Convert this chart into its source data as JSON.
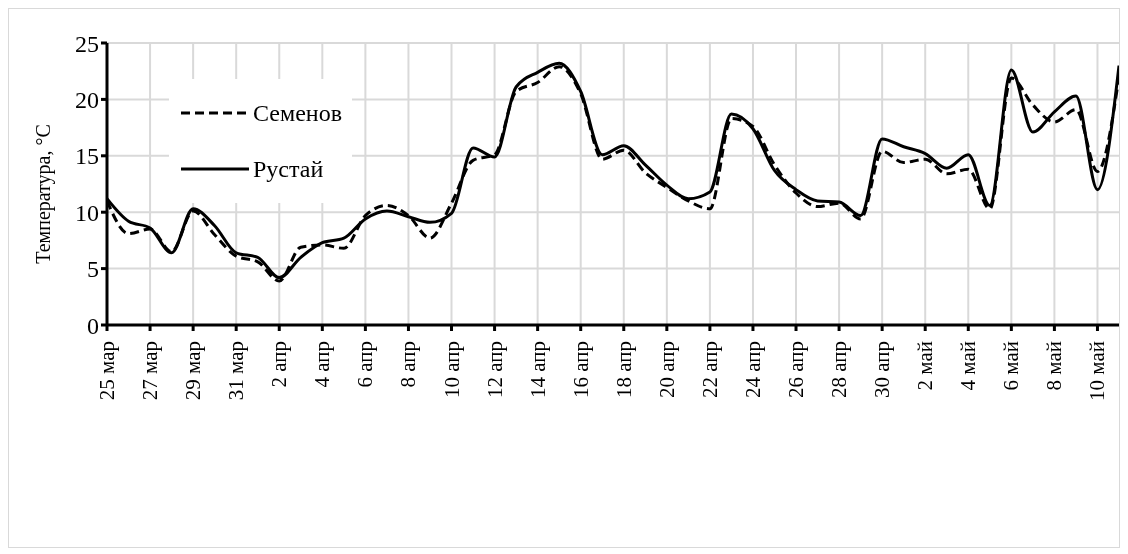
{
  "chart_data": {
    "type": "line",
    "ylabel": "Температура, °С",
    "x": [
      "--03-25",
      "--03-26",
      "--03-27",
      "--03-28",
      "--03-29",
      "--03-30",
      "--03-31",
      "--04-01",
      "--04-02",
      "--04-03",
      "--04-04",
      "--04-05",
      "--04-06",
      "--04-07",
      "--04-08",
      "--04-09",
      "--04-10",
      "--04-11",
      "--04-12",
      "--04-13",
      "--04-14",
      "--04-15",
      "--04-16",
      "--04-17",
      "--04-18",
      "--04-19",
      "--04-20",
      "--04-21",
      "--04-22",
      "--04-23",
      "--04-24",
      "--04-25",
      "--04-26",
      "--04-27",
      "--04-28",
      "--04-29",
      "--04-30",
      "--05-01",
      "--05-02",
      "--05-03",
      "--05-04",
      "--05-05",
      "--05-06",
      "--05-07",
      "--05-08",
      "--05-09",
      "--05-10",
      "--05-11"
    ],
    "series": [
      {
        "name": "Семенов",
        "color": "#000000",
        "line_style": "dashed",
        "values": [
          11.0,
          8.1,
          8.5,
          6.5,
          10.1,
          8.0,
          6.1,
          5.6,
          3.9,
          6.9,
          7.1,
          6.8,
          9.7,
          10.6,
          9.7,
          7.7,
          10.8,
          14.6,
          15.1,
          20.7,
          21.5,
          22.9,
          20.5,
          14.7,
          15.5,
          13.5,
          12.2,
          11.0,
          10.3,
          18.3,
          17.6,
          14.2,
          11.7,
          10.5,
          10.8,
          9.4,
          15.4,
          14.4,
          14.7,
          13.4,
          13.8,
          10.3,
          21.9,
          19.5,
          18.0,
          19.1,
          13.6,
          22.0
        ]
      },
      {
        "name": "Рустай",
        "color": "#000000",
        "line_style": "solid",
        "values": [
          11.2,
          9.2,
          8.6,
          6.4,
          10.3,
          8.8,
          6.4,
          6.0,
          4.2,
          6.0,
          7.3,
          7.7,
          9.4,
          10.1,
          9.6,
          9.1,
          9.9,
          15.7,
          14.9,
          21.1,
          22.4,
          23.2,
          20.7,
          15.1,
          15.9,
          14.2,
          12.4,
          11.2,
          11.8,
          18.7,
          17.4,
          13.7,
          12.0,
          11.0,
          10.9,
          9.7,
          16.5,
          15.8,
          15.2,
          13.9,
          15.1,
          10.6,
          22.6,
          17.1,
          18.9,
          20.3,
          12.0,
          23.0
        ]
      }
    ],
    "xlim": [
      "--03-25",
      "--05-11"
    ],
    "xticks": [
      {
        "value": "--03-25",
        "label": "25 мар"
      },
      {
        "value": "--03-27",
        "label": "27 мар"
      },
      {
        "value": "--03-29",
        "label": "29 мар"
      },
      {
        "value": "--03-31",
        "label": "31 мар"
      },
      {
        "value": "--04-02",
        "label": "2 апр"
      },
      {
        "value": "--04-04",
        "label": "4 апр"
      },
      {
        "value": "--04-06",
        "label": "6 апр"
      },
      {
        "value": "--04-08",
        "label": "8 апр"
      },
      {
        "value": "--04-10",
        "label": "10 апр"
      },
      {
        "value": "--04-12",
        "label": "12 апр"
      },
      {
        "value": "--04-14",
        "label": "14 апр"
      },
      {
        "value": "--04-16",
        "label": "16 апр"
      },
      {
        "value": "--04-18",
        "label": "18 апр"
      },
      {
        "value": "--04-20",
        "label": "20 апр"
      },
      {
        "value": "--04-22",
        "label": "22 апр"
      },
      {
        "value": "--04-24",
        "label": "24 апр"
      },
      {
        "value": "--04-26",
        "label": "26 апр"
      },
      {
        "value": "--04-28",
        "label": "28 апр"
      },
      {
        "value": "--04-30",
        "label": "30 апр"
      },
      {
        "value": "--05-02",
        "label": "2 май"
      },
      {
        "value": "--05-04",
        "label": "4 май"
      },
      {
        "value": "--05-06",
        "label": "6 май"
      },
      {
        "value": "--05-08",
        "label": "8 май"
      },
      {
        "value": "--05-10",
        "label": "10 май"
      }
    ],
    "ylim": [
      0,
      25
    ],
    "yticks": [
      0,
      5,
      10,
      15,
      20,
      25
    ],
    "grid": true,
    "legend": "top left"
  }
}
